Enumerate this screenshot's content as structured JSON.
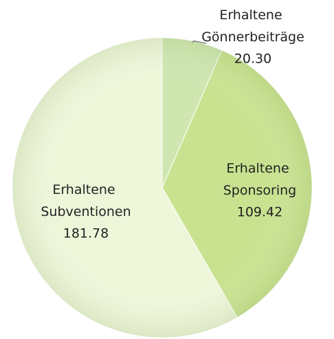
{
  "chart_data": {
    "type": "pie",
    "categories": [
      "Erhaltene Gönnerbeiträge",
      "Erhaltene Sponsoring",
      "Erhaltene Subventionen"
    ],
    "values": [
      20.3,
      109.42,
      181.78
    ],
    "value_labels": [
      "20.30",
      "109.42",
      "181.78"
    ],
    "colors": [
      "#cfe6b0",
      "#c8e290",
      "#eef6da"
    ]
  }
}
